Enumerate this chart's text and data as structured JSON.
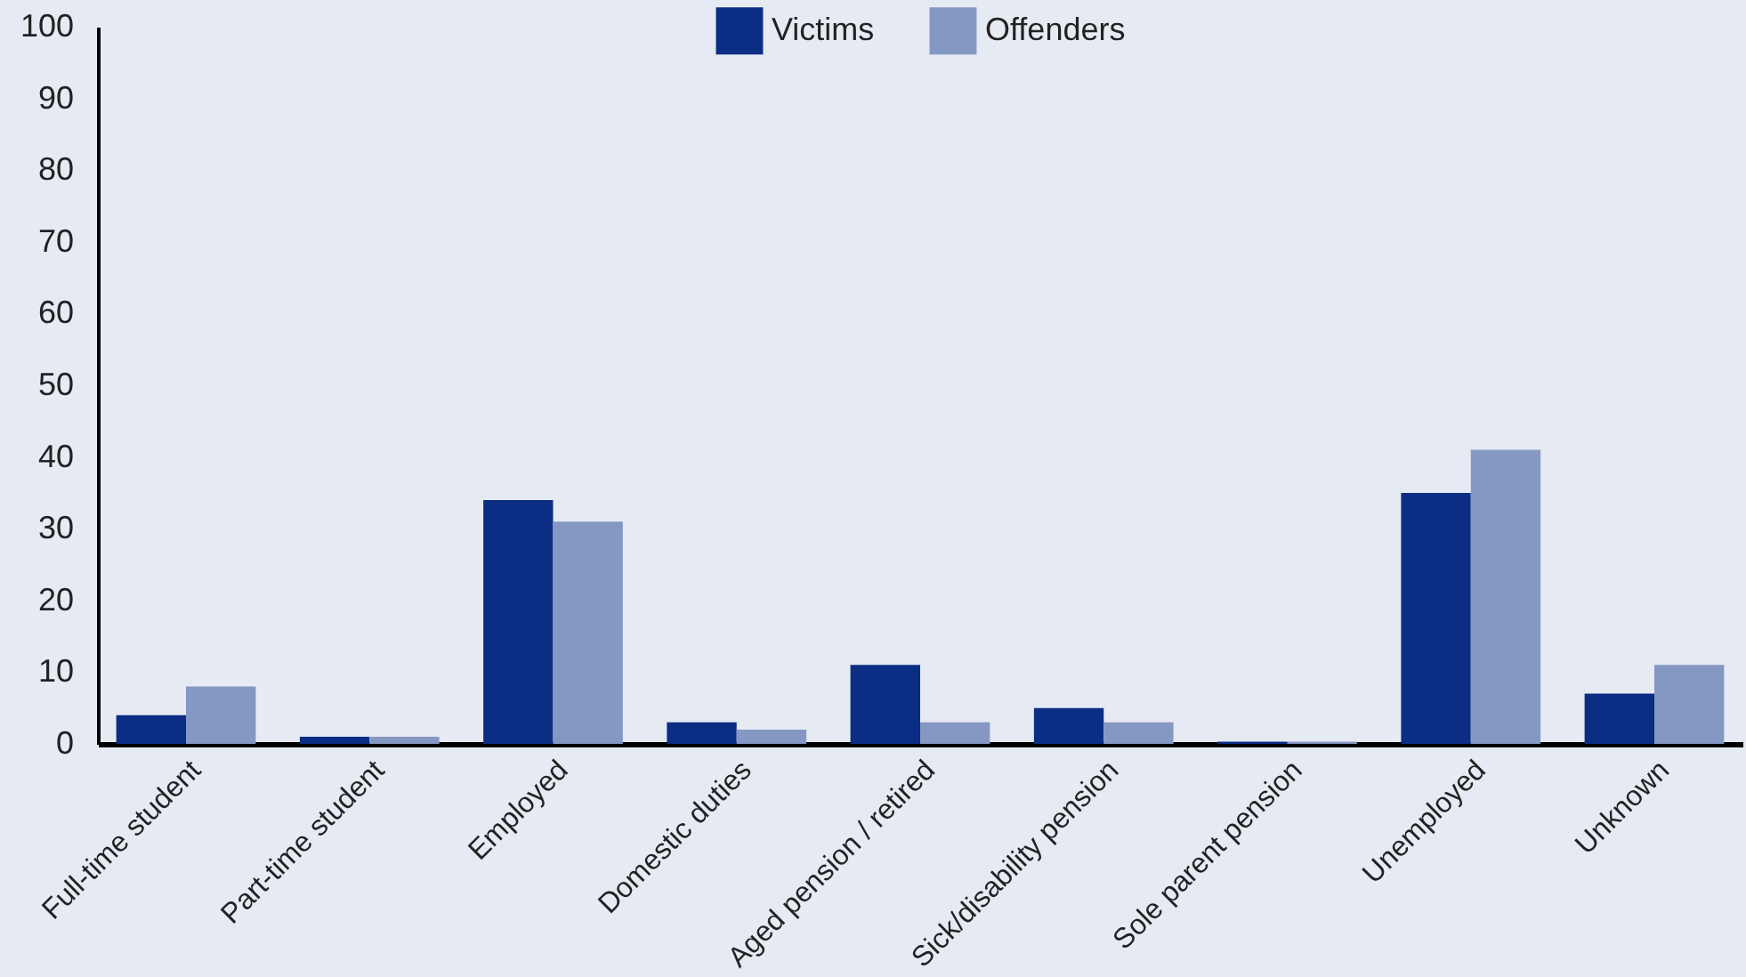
{
  "chart_data": {
    "type": "bar",
    "categories": [
      "Full-time student",
      "Part-time student",
      "Employed",
      "Domestic duties",
      "Aged pension / retired",
      "Sick/disability pension",
      "Sole parent pension",
      "Unemployed",
      "Unknown"
    ],
    "series": [
      {
        "name": "Victims",
        "color": "#0b2d84",
        "values": [
          4,
          1,
          34,
          3,
          11,
          5,
          0.3,
          35,
          7
        ]
      },
      {
        "name": "Offenders",
        "color": "#8598c3",
        "values": [
          8,
          1,
          31,
          2,
          3,
          3,
          0.3,
          41,
          11
        ]
      }
    ],
    "ylim": [
      0,
      100
    ],
    "yticks": [
      0,
      10,
      20,
      30,
      40,
      50,
      60,
      70,
      80,
      90,
      100
    ],
    "grid": false,
    "legend": "top"
  }
}
